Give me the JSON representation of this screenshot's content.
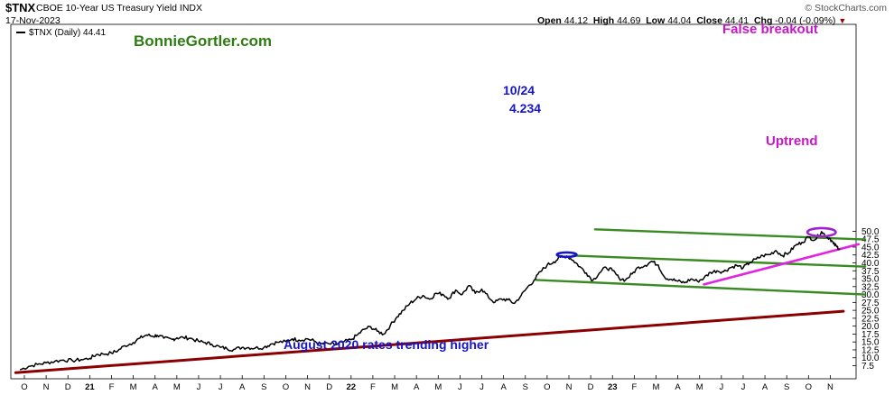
{
  "header": {
    "ticker": "$TNX",
    "name": "CBOE 10-Year US Treasury Yield INDX",
    "date": "17-Nov-2023",
    "open_label": "Open",
    "open": "44.12",
    "high_label": "High",
    "high": "44.69",
    "low_label": "Low",
    "low": "44.04",
    "close_label": "Close",
    "close": "44.41",
    "chg_label": "Chg",
    "chg": "-0.04 (-0.09%)",
    "brand": "© StockCharts.com",
    "legend": "$TNX (Daily) 44.41"
  },
  "annotations": {
    "site": "BonnieGortler.com",
    "peak_date": "10/24",
    "peak_value": "4.234",
    "false_breakout": "False breakout",
    "uptrend": "Uptrend",
    "long_trend": "August 2020 rates trending higher"
  },
  "colors": {
    "price": "#000000",
    "channel": "#3a8a22",
    "uptrend": "#e024e0",
    "long_trend": "#8b0000",
    "site": "#2e7d12",
    "blue": "#1515c8",
    "magenta": "#c816c8"
  },
  "chart_data": {
    "type": "line",
    "title": "$TNX CBOE 10-Year US Treasury Yield INDX",
    "ylim": [
      5.0,
      52.5
    ],
    "y_ticks": [
      7.5,
      10.0,
      12.5,
      15.0,
      17.5,
      20.0,
      22.5,
      25.0,
      27.5,
      30.0,
      32.5,
      35.0,
      37.5,
      40.0,
      42.5,
      45.0,
      47.5,
      50.0
    ],
    "y_tick_labels": [
      "7.5",
      "10.0",
      "12.5",
      "15.0",
      "17.5",
      "20.0",
      "22.5",
      "25.0",
      "27.5",
      "30.0",
      "32.5",
      "35.0",
      "37.5",
      "40.0",
      "42.5",
      "45.0",
      "47.5",
      "50.0"
    ],
    "x_ticks": [
      {
        "label": "O",
        "t": 0.0,
        "year": false
      },
      {
        "label": "N",
        "t": 1.0,
        "year": false
      },
      {
        "label": "D",
        "t": 2.0,
        "year": false
      },
      {
        "label": "21",
        "t": 3.0,
        "year": true
      },
      {
        "label": "F",
        "t": 4.0,
        "year": false
      },
      {
        "label": "M",
        "t": 5.0,
        "year": false
      },
      {
        "label": "A",
        "t": 6.0,
        "year": false
      },
      {
        "label": "M",
        "t": 7.0,
        "year": false
      },
      {
        "label": "J",
        "t": 8.0,
        "year": false
      },
      {
        "label": "J",
        "t": 9.0,
        "year": false
      },
      {
        "label": "A",
        "t": 10.0,
        "year": false
      },
      {
        "label": "S",
        "t": 11.0,
        "year": false
      },
      {
        "label": "O",
        "t": 12.0,
        "year": false
      },
      {
        "label": "N",
        "t": 13.0,
        "year": false
      },
      {
        "label": "D",
        "t": 14.0,
        "year": false
      },
      {
        "label": "22",
        "t": 15.0,
        "year": true
      },
      {
        "label": "F",
        "t": 16.0,
        "year": false
      },
      {
        "label": "M",
        "t": 17.0,
        "year": false
      },
      {
        "label": "A",
        "t": 18.0,
        "year": false
      },
      {
        "label": "M",
        "t": 19.0,
        "year": false
      },
      {
        "label": "J",
        "t": 20.0,
        "year": false
      },
      {
        "label": "J",
        "t": 21.0,
        "year": false
      },
      {
        "label": "A",
        "t": 22.0,
        "year": false
      },
      {
        "label": "S",
        "t": 23.0,
        "year": false
      },
      {
        "label": "O",
        "t": 24.0,
        "year": false
      },
      {
        "label": "N",
        "t": 25.0,
        "year": false
      },
      {
        "label": "D",
        "t": 26.0,
        "year": false
      },
      {
        "label": "23",
        "t": 27.0,
        "year": true
      },
      {
        "label": "F",
        "t": 28.0,
        "year": false
      },
      {
        "label": "M",
        "t": 29.0,
        "year": false
      },
      {
        "label": "A",
        "t": 30.0,
        "year": false
      },
      {
        "label": "M",
        "t": 31.0,
        "year": false
      },
      {
        "label": "J",
        "t": 32.0,
        "year": false
      },
      {
        "label": "J",
        "t": 33.0,
        "year": false
      },
      {
        "label": "A",
        "t": 34.0,
        "year": false
      },
      {
        "label": "S",
        "t": 35.0,
        "year": false
      },
      {
        "label": "O",
        "t": 36.0,
        "year": false
      },
      {
        "label": "N",
        "t": 37.0,
        "year": false
      }
    ],
    "series": [
      {
        "values": [
          [
            -0.2,
            6.2
          ],
          [
            0.2,
            7.3
          ],
          [
            0.6,
            7.9
          ],
          [
            1.0,
            8.4
          ],
          [
            1.4,
            8.9
          ],
          [
            1.8,
            9.3
          ],
          [
            2.2,
            9.1
          ],
          [
            2.6,
            9.4
          ],
          [
            3.0,
            9.8
          ],
          [
            3.3,
            11.0
          ],
          [
            3.6,
            11.2
          ],
          [
            4.0,
            11.5
          ],
          [
            4.3,
            12.3
          ],
          [
            4.6,
            13.8
          ],
          [
            5.0,
            14.8
          ],
          [
            5.3,
            16.2
          ],
          [
            5.6,
            17.2
          ],
          [
            5.9,
            16.8
          ],
          [
            6.1,
            17.1
          ],
          [
            6.4,
            16.2
          ],
          [
            6.8,
            15.8
          ],
          [
            7.0,
            16.3
          ],
          [
            7.3,
            16.4
          ],
          [
            7.6,
            16.2
          ],
          [
            8.0,
            15.2
          ],
          [
            8.3,
            14.8
          ],
          [
            8.6,
            14.3
          ],
          [
            9.0,
            13.3
          ],
          [
            9.3,
            12.9
          ],
          [
            9.6,
            12.6
          ],
          [
            10.0,
            13.3
          ],
          [
            10.3,
            13.2
          ],
          [
            10.6,
            13.1
          ],
          [
            11.0,
            13.3
          ],
          [
            11.3,
            14.3
          ],
          [
            11.6,
            14.9
          ],
          [
            12.0,
            15.1
          ],
          [
            12.3,
            16.0
          ],
          [
            12.6,
            15.6
          ],
          [
            13.0,
            16.0
          ],
          [
            13.3,
            15.3
          ],
          [
            13.6,
            14.3
          ],
          [
            14.0,
            14.4
          ],
          [
            14.3,
            14.1
          ],
          [
            14.6,
            14.9
          ],
          [
            15.0,
            15.7
          ],
          [
            15.3,
            17.3
          ],
          [
            15.6,
            19.0
          ],
          [
            15.9,
            19.8
          ],
          [
            16.2,
            18.4
          ],
          [
            16.5,
            17.5
          ],
          [
            16.8,
            20.2
          ],
          [
            17.1,
            22.9
          ],
          [
            17.4,
            25.0
          ],
          [
            17.7,
            27.2
          ],
          [
            18.0,
            28.7
          ],
          [
            18.3,
            29.7
          ],
          [
            18.6,
            28.5
          ],
          [
            18.9,
            30.4
          ],
          [
            19.2,
            30.1
          ],
          [
            19.5,
            28.8
          ],
          [
            19.8,
            31.4
          ],
          [
            20.1,
            30.0
          ],
          [
            20.4,
            32.8
          ],
          [
            20.7,
            30.4
          ],
          [
            21.0,
            31.7
          ],
          [
            21.3,
            29.2
          ],
          [
            21.6,
            27.5
          ],
          [
            21.9,
            28.6
          ],
          [
            22.2,
            28.3
          ],
          [
            22.5,
            27.2
          ],
          [
            22.8,
            29.6
          ],
          [
            23.1,
            32.3
          ],
          [
            23.4,
            34.5
          ],
          [
            23.7,
            37.2
          ],
          [
            24.0,
            39.3
          ],
          [
            24.3,
            40.3
          ],
          [
            24.6,
            41.8
          ],
          [
            24.9,
            42.2
          ],
          [
            25.2,
            40.8
          ],
          [
            25.5,
            38.8
          ],
          [
            25.8,
            36.8
          ],
          [
            26.1,
            34.5
          ],
          [
            26.4,
            36.8
          ],
          [
            26.7,
            38.6
          ],
          [
            27.0,
            37.6
          ],
          [
            27.3,
            35.2
          ],
          [
            27.6,
            34.6
          ],
          [
            27.9,
            36.5
          ],
          [
            28.2,
            38.7
          ],
          [
            28.5,
            39.2
          ],
          [
            28.8,
            40.5
          ],
          [
            29.1,
            39.3
          ],
          [
            29.4,
            35.4
          ],
          [
            29.7,
            34.8
          ],
          [
            30.0,
            34.2
          ],
          [
            30.3,
            33.7
          ],
          [
            30.6,
            34.9
          ],
          [
            30.9,
            34.2
          ],
          [
            31.2,
            35.2
          ],
          [
            31.5,
            37.0
          ],
          [
            31.8,
            37.5
          ],
          [
            32.1,
            37.2
          ],
          [
            32.4,
            38.5
          ],
          [
            32.7,
            39.2
          ],
          [
            33.0,
            38.4
          ],
          [
            33.3,
            40.1
          ],
          [
            33.6,
            41.2
          ],
          [
            33.9,
            42.3
          ],
          [
            34.2,
            42.6
          ],
          [
            34.5,
            43.9
          ],
          [
            34.8,
            42.3
          ],
          [
            35.1,
            43.2
          ],
          [
            35.4,
            45.5
          ],
          [
            35.7,
            46.5
          ],
          [
            36.0,
            48.2
          ],
          [
            36.3,
            47.3
          ],
          [
            36.6,
            49.9
          ],
          [
            36.8,
            48.5
          ],
          [
            37.0,
            47.6
          ],
          [
            37.15,
            46.0
          ],
          [
            37.3,
            45.1
          ],
          [
            37.45,
            44.41
          ]
        ]
      }
    ],
    "lines": [
      {
        "name": "channel-upper",
        "color": "#3a8a22",
        "points": [
          [
            25.2,
            42.3
          ],
          [
            38.6,
            38.8
          ]
        ]
      },
      {
        "name": "channel-lower",
        "color": "#3a8a22",
        "points": [
          [
            23.5,
            34.6
          ],
          [
            38.6,
            30.0
          ]
        ]
      },
      {
        "name": "false-breakout-resistance",
        "color": "#3a8a22",
        "points": [
          [
            26.2,
            50.6
          ],
          [
            38.6,
            47.4
          ]
        ]
      },
      {
        "name": "uptrend",
        "color": "#e024e0",
        "points": [
          [
            31.2,
            33.2
          ],
          [
            38.3,
            45.9
          ]
        ]
      },
      {
        "name": "long-trend",
        "color": "#8b0000",
        "points": [
          [
            -0.4,
            5.3
          ],
          [
            37.6,
            24.7
          ]
        ]
      }
    ],
    "markers": [
      {
        "name": "oct24-peak-ellipse",
        "color": "#1515c8",
        "center": [
          24.9,
          42.6
        ],
        "rx_t": 0.45,
        "ry_y": 0.7
      },
      {
        "name": "false-breakout-ellipse",
        "color": "#a020d0",
        "center": [
          36.6,
          49.7
        ],
        "rx_t": 0.65,
        "ry_y": 1.3
      }
    ],
    "grid": false
  }
}
